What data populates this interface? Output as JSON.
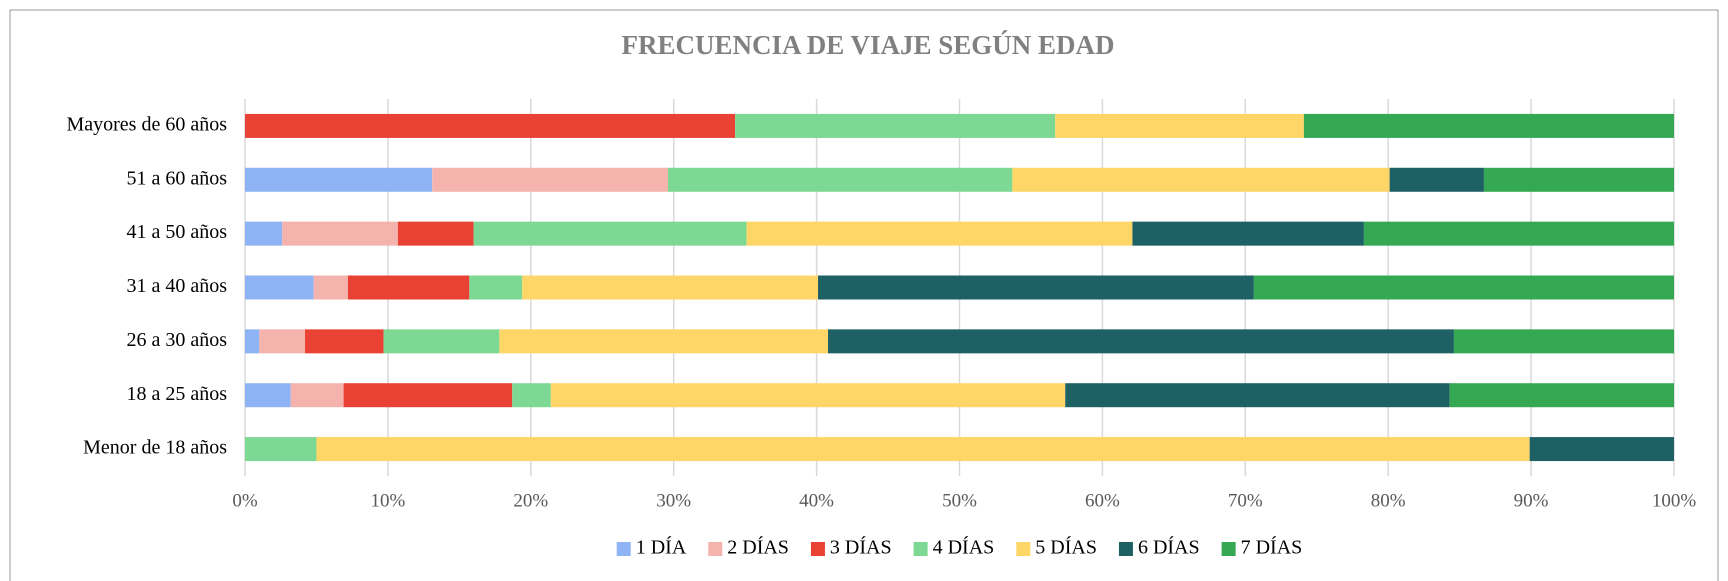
{
  "chart_data": {
    "type": "stacked-bar-horizontal",
    "title": "FRECUENCIA DE VIAJE SEGÚN EDAD",
    "categories": [
      "Mayores de 60 años",
      "51 a 60 años",
      "41 a 50 años",
      "31 a 40 años",
      "26 a 30 años",
      "18 a 25 años",
      "Menor de 18 años"
    ],
    "series": [
      {
        "name": "1 DÍA",
        "color": "#8fb4f5",
        "values": [
          0,
          13.1,
          2.6,
          4.8,
          1.0,
          3.2,
          0
        ]
      },
      {
        "name": "2 DÍAS",
        "color": "#f5b3ad",
        "values": [
          0,
          16.5,
          8.1,
          2.4,
          3.2,
          3.7,
          0
        ]
      },
      {
        "name": "3 DÍAS",
        "color": "#e94235",
        "values": [
          34.3,
          0,
          5.3,
          8.5,
          5.5,
          11.8,
          0
        ]
      },
      {
        "name": "4 DÍAS",
        "color": "#7dd893",
        "values": [
          22.4,
          24.1,
          19.1,
          3.7,
          8.1,
          2.7,
          5.0
        ]
      },
      {
        "name": "5 DÍAS",
        "color": "#fdd667",
        "values": [
          17.4,
          26.4,
          27.0,
          20.7,
          23.0,
          36.0,
          84.9
        ]
      },
      {
        "name": "6 DÍAS",
        "color": "#1e6164",
        "values": [
          0,
          6.6,
          16.2,
          30.5,
          43.8,
          26.9,
          10.1
        ]
      },
      {
        "name": "7 DÍAS",
        "color": "#34a853",
        "values": [
          25.9,
          13.3,
          21.7,
          29.4,
          15.4,
          15.7,
          0
        ]
      }
    ],
    "xlim": [
      0,
      100
    ],
    "xticks": [
      {
        "value": 0,
        "label": "0%"
      },
      {
        "value": 10,
        "label": "10%"
      },
      {
        "value": 20,
        "label": "20%"
      },
      {
        "value": 30,
        "label": "30%"
      },
      {
        "value": 40,
        "label": "40%"
      },
      {
        "value": 50,
        "label": "50%"
      },
      {
        "value": 60,
        "label": "60%"
      },
      {
        "value": 70,
        "label": "70%"
      },
      {
        "value": 80,
        "label": "80%"
      },
      {
        "value": 90,
        "label": "90%"
      },
      {
        "value": 100,
        "label": "100%"
      }
    ],
    "grid": true,
    "legend": "bottom"
  }
}
